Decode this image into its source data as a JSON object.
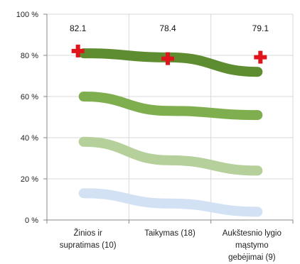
{
  "chart_data": {
    "type": "line",
    "categories": [
      [
        "Žinios ir",
        "supratimas (10)"
      ],
      [
        "Taikymas (18)"
      ],
      [
        "Aukštesnio lygio",
        "mąstymo",
        "gebėjimai (9)"
      ]
    ],
    "ylim": [
      0,
      100
    ],
    "y_ticks": [
      {
        "value": 0,
        "label": "0 %"
      },
      {
        "value": 20,
        "label": "20 %"
      },
      {
        "value": 40,
        "label": "40 %"
      },
      {
        "value": 60,
        "label": "60 %"
      },
      {
        "value": 80,
        "label": "80 %"
      },
      {
        "value": 100,
        "label": "100 %"
      }
    ],
    "grid": true,
    "series": [
      {
        "values": [
          13,
          8,
          4
        ],
        "color": "#d2e1f3"
      },
      {
        "values": [
          38,
          29,
          24
        ],
        "color": "#b5d09a"
      },
      {
        "values": [
          60,
          53,
          51
        ],
        "color": "#7fae4e"
      },
      {
        "values": [
          81,
          79,
          72
        ],
        "color": "#5e8c30"
      }
    ],
    "markers": {
      "values": [
        82.1,
        78.4,
        79.1
      ],
      "labels": [
        "82.1",
        "78.4",
        "79.1"
      ],
      "color": "#e0141c",
      "shape": "cross"
    }
  }
}
